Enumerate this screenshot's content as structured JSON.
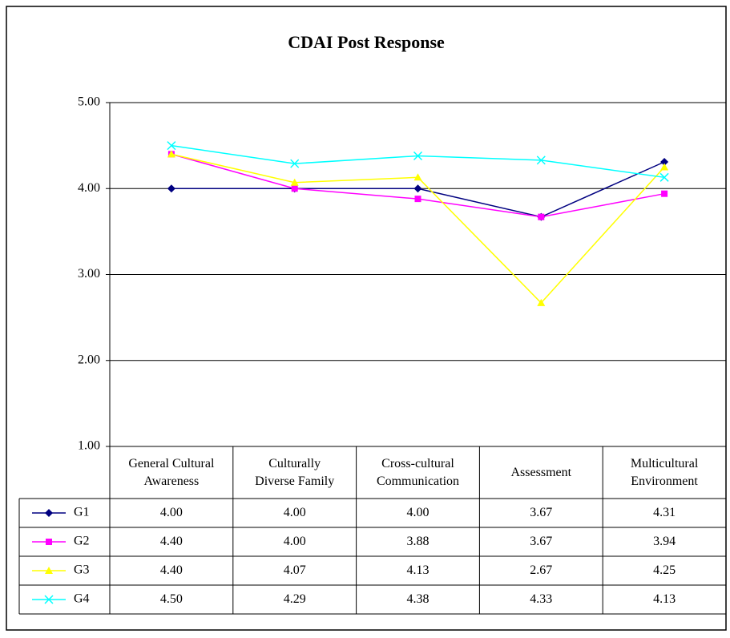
{
  "chart_data": {
    "type": "line",
    "title": "CDAI Post Response",
    "categories": [
      "General Cultural\nAwareness",
      "Culturally\nDiverse Family",
      "Cross-cultural\nCommunication",
      "Assessment",
      "Multicultural\nEnvironment"
    ],
    "series": [
      {
        "name": "G1",
        "color": "#000080",
        "marker": "diamond",
        "values": [
          4.0,
          4.0,
          4.0,
          3.67,
          4.31
        ],
        "value_labels": [
          "4.00",
          "4.00",
          "4.00",
          "3.67",
          "4.31"
        ]
      },
      {
        "name": "G2",
        "color": "#ff00ff",
        "marker": "square",
        "values": [
          4.4,
          4.0,
          3.88,
          3.67,
          3.94
        ],
        "value_labels": [
          "4.40",
          "4.00",
          "3.88",
          "3.67",
          "3.94"
        ]
      },
      {
        "name": "G3",
        "color": "#ffff00",
        "marker": "triangle",
        "values": [
          4.4,
          4.07,
          4.13,
          2.67,
          4.25
        ],
        "value_labels": [
          "4.40",
          "4.07",
          "4.13",
          "2.67",
          "4.25"
        ]
      },
      {
        "name": "G4",
        "color": "#00ffff",
        "marker": "x",
        "values": [
          4.5,
          4.29,
          4.38,
          4.33,
          4.13
        ],
        "value_labels": [
          "4.50",
          "4.29",
          "4.38",
          "4.33",
          "4.13"
        ]
      }
    ],
    "ylim": [
      1,
      5
    ],
    "yticks": [
      {
        "value": 1,
        "label": "1.00"
      },
      {
        "value": 2,
        "label": "2.00"
      },
      {
        "value": 3,
        "label": "3.00"
      },
      {
        "value": 4,
        "label": "4.00"
      },
      {
        "value": 5,
        "label": "5.00"
      }
    ],
    "grid": true,
    "data_table": true
  }
}
